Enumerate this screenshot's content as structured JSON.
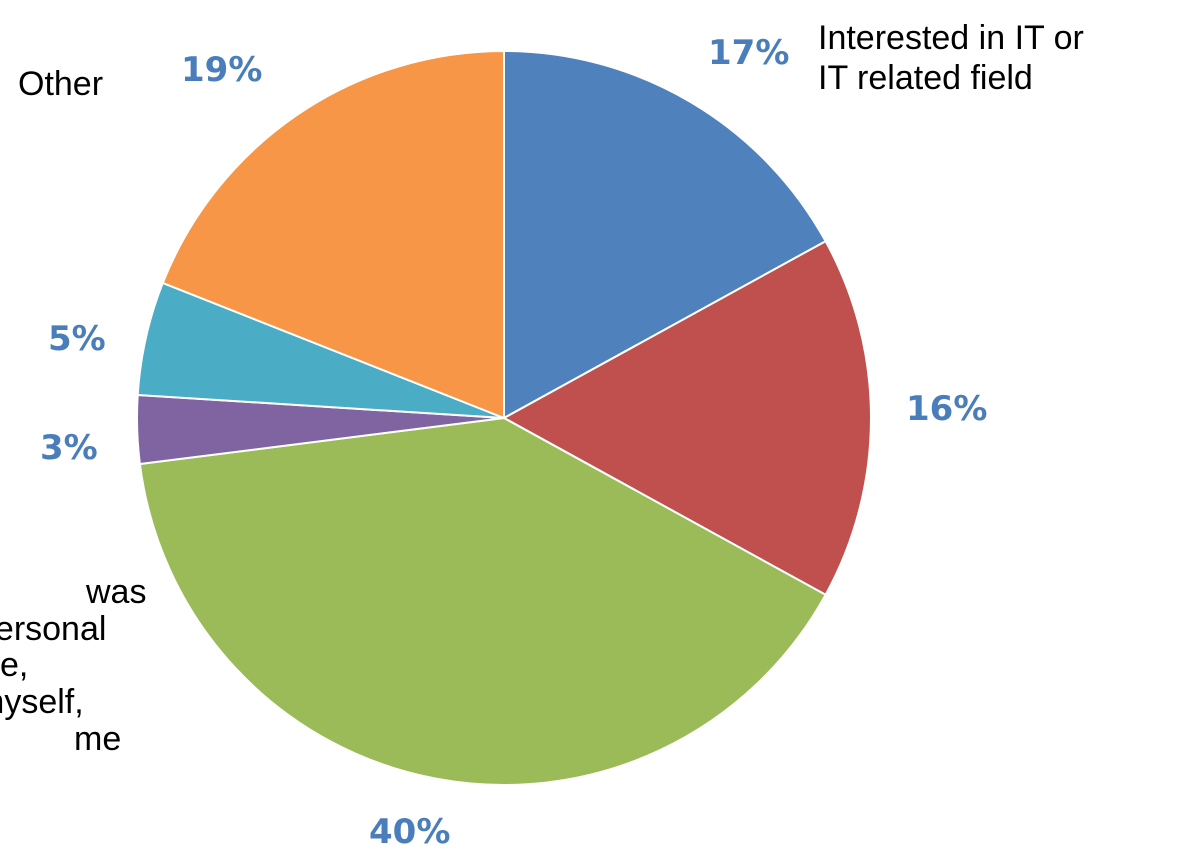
{
  "chart_data": {
    "type": "pie",
    "slices": [
      {
        "label": "Interested in IT or IT related field",
        "value": 17,
        "value_label": "17%",
        "color": "#4f81bd"
      },
      {
        "label": "",
        "value": 16,
        "value_label": "16%",
        "color": "#c0504d"
      },
      {
        "label": "was personal e, myself, me",
        "value": 40,
        "value_label": "40%",
        "color": "#9bbb59"
      },
      {
        "label": "",
        "value": 3,
        "value_label": "3%",
        "color": "#8064a2"
      },
      {
        "label": "",
        "value": 5,
        "value_label": "5%",
        "color": "#4bacc6"
      },
      {
        "label": "Other",
        "value": 19,
        "value_label": "19%",
        "color": "#f79646"
      }
    ],
    "category_labels": {
      "it_line1": "Interested in IT or",
      "it_line2": "IT related field",
      "other": "Other",
      "cut_line1": "was",
      "cut_line2": "personal",
      "cut_line3": "e,",
      "cut_line4": "myself,",
      "cut_line5": "me"
    },
    "start_angle_deg": 0,
    "direction": "clockwise",
    "label_color": "#4a7ebb",
    "legend": "none"
  }
}
